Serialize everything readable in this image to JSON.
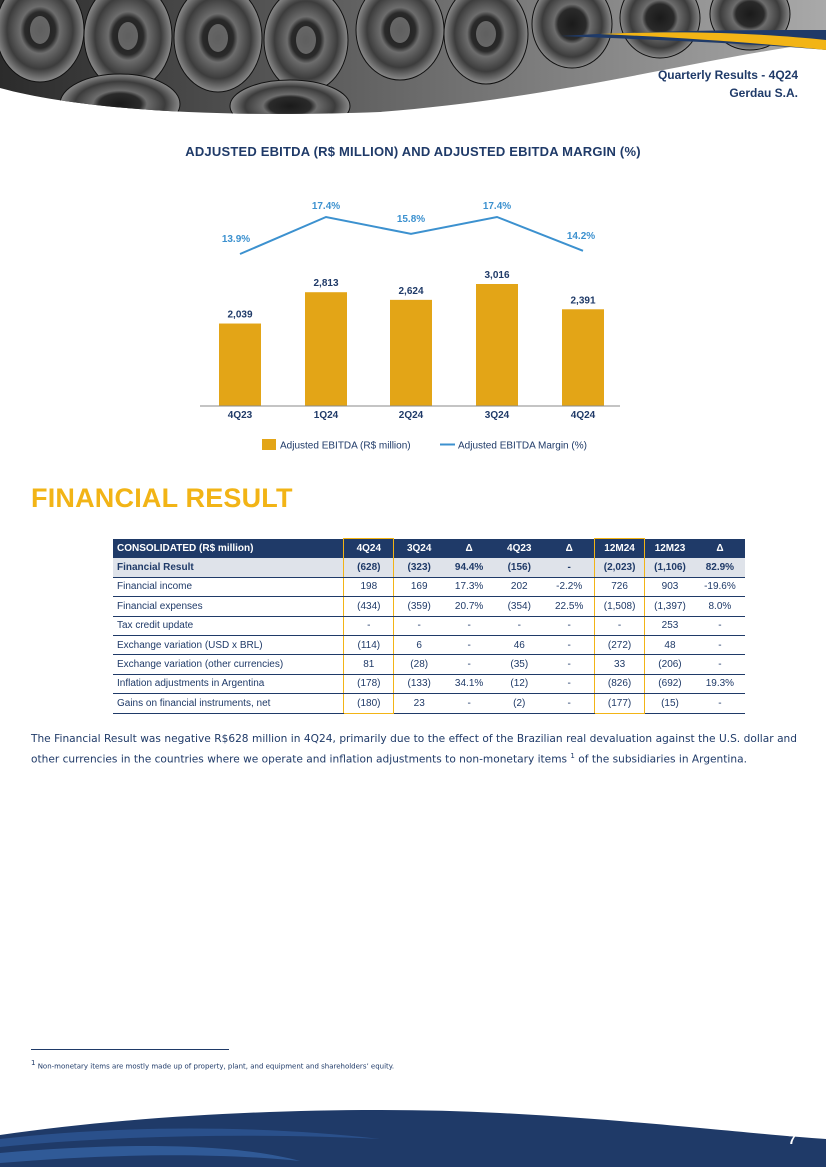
{
  "header": {
    "report_title": "Quarterly Results - 4Q24",
    "company": "Gerdau S.A."
  },
  "chart": {
    "title": "ADJUSTED EBITDA (R$ MILLION) AND ADJUSTED EBITDA MARGIN (%)",
    "legend_bar": "Adjusted EBITDA (R$ million)",
    "legend_line": "Adjusted EBITDA Margin (%)"
  },
  "chart_data": {
    "type": "bar",
    "categories": [
      "4Q23",
      "1Q24",
      "2Q24",
      "3Q24",
      "4Q24"
    ],
    "series": [
      {
        "name": "Adjusted EBITDA (R$ million)",
        "type": "bar",
        "values": [
          2039,
          2813,
          2624,
          3016,
          2391
        ],
        "labels": [
          "2,039",
          "2,813",
          "2,624",
          "3,016",
          "2,391"
        ],
        "color": "#e3a517"
      },
      {
        "name": "Adjusted EBITDA Margin (%)",
        "type": "line",
        "values": [
          13.9,
          17.4,
          15.8,
          17.4,
          14.2
        ],
        "labels": [
          "13.9%",
          "17.4%",
          "15.8%",
          "17.4%",
          "14.2%"
        ],
        "color": "#3c91cf"
      }
    ],
    "title": "ADJUSTED EBITDA (R$ MILLION) AND ADJUSTED EBITDA MARGIN (%)",
    "legend": "bottom",
    "grid": false
  },
  "section": {
    "heading": "FINANCIAL RESULT"
  },
  "table": {
    "headers": [
      "CONSOLIDATED (R$ million)",
      "4Q24",
      "3Q24",
      "Δ",
      "4Q23",
      "Δ",
      "12M24",
      "12M23",
      "Δ"
    ],
    "rows": [
      [
        "Financial Result",
        "(628)",
        "(323)",
        "94.4%",
        "(156)",
        "-",
        "(2,023)",
        "(1,106)",
        "82.9%"
      ],
      [
        "Financial income",
        "198",
        "169",
        "17.3%",
        "202",
        "-2.2%",
        "726",
        "903",
        "-19.6%"
      ],
      [
        "Financial expenses",
        "(434)",
        "(359)",
        "20.7%",
        "(354)",
        "22.5%",
        "(1,508)",
        "(1,397)",
        "8.0%"
      ],
      [
        "Tax credit update",
        "-",
        "-",
        "-",
        "-",
        "-",
        "-",
        "253",
        "-"
      ],
      [
        "Exchange variation (USD x BRL)",
        "(114)",
        "6",
        "-",
        "46",
        "-",
        "(272)",
        "48",
        "-"
      ],
      [
        "Exchange variation (other currencies)",
        "81",
        "(28)",
        "-",
        "(35)",
        "-",
        "33",
        "(206)",
        "-"
      ],
      [
        "Inflation adjustments in Argentina",
        "(178)",
        "(133)",
        "34.1%",
        "(12)",
        "-",
        "(826)",
        "(692)",
        "19.3%"
      ],
      [
        "Gains on financial instruments, net",
        "(180)",
        "23",
        "-",
        "(2)",
        "-",
        "(177)",
        "(15)",
        "-"
      ]
    ]
  },
  "body": {
    "paragraph_main": "The Financial Result was negative R$628 million in 4Q24, primarily due to the effect of the Brazilian real devaluation against the U.S. dollar and other currencies in the countries where we operate and inflation adjustments to non-monetary items",
    "footnote_ref": "1",
    "paragraph_end": " of the subsidiaries in Argentina."
  },
  "footnote": {
    "marker": "1",
    "text": " Non-monetary items are mostly made up of property, plant, and equipment and shareholders’ equity."
  },
  "footer": {
    "page_number": "7"
  },
  "colors": {
    "navy": "#1f3a68",
    "gold": "#f2b416",
    "bar": "#e3a517",
    "line": "#3c91cf"
  }
}
